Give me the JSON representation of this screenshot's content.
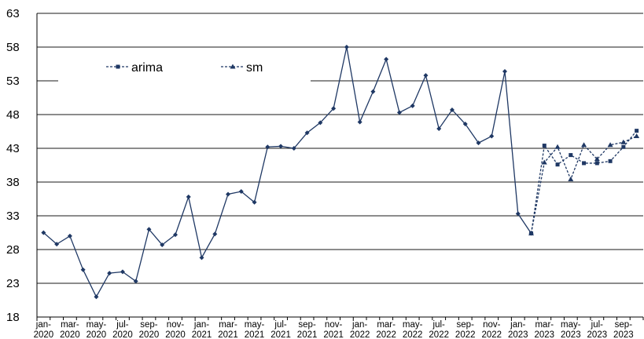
{
  "chart_data": {
    "type": "line",
    "title": "",
    "xlabel": "",
    "ylabel": "",
    "ylim": [
      18,
      63
    ],
    "y_ticks": [
      18,
      23,
      28,
      33,
      38,
      43,
      48,
      53,
      58,
      63
    ],
    "y_tick_labels": [
      "18",
      "23",
      "28",
      "33",
      "38",
      "43",
      "48",
      "53",
      "58",
      "63"
    ],
    "grid": "horizontal",
    "legend_position": "top-left",
    "x_tick_labels": [
      [
        "jan-",
        "2020"
      ],
      [
        "mar-",
        "2020"
      ],
      [
        "may-",
        "2020"
      ],
      [
        "jul-",
        "2020"
      ],
      [
        "sep-",
        "2020"
      ],
      [
        "nov-",
        "2020"
      ],
      [
        "jan-",
        "2021"
      ],
      [
        "mar-",
        "2021"
      ],
      [
        "may-",
        "2021"
      ],
      [
        "jul-",
        "2021"
      ],
      [
        "sep-",
        "2021"
      ],
      [
        "nov-",
        "2021"
      ],
      [
        "jan-",
        "2022"
      ],
      [
        "mar-",
        "2022"
      ],
      [
        "may-",
        "2022"
      ],
      [
        "jul-",
        "2022"
      ],
      [
        "sep-",
        "2022"
      ],
      [
        "nov-",
        "2022"
      ],
      [
        "jan-",
        "2023"
      ],
      [
        "mar-",
        "2023"
      ],
      [
        "may-",
        "2023"
      ],
      [
        "jul-",
        "2023"
      ],
      [
        "sep-",
        "2023"
      ]
    ],
    "x": [
      "2020-01",
      "2020-02",
      "2020-03",
      "2020-04",
      "2020-05",
      "2020-06",
      "2020-07",
      "2020-08",
      "2020-09",
      "2020-10",
      "2020-11",
      "2020-12",
      "2021-01",
      "2021-02",
      "2021-03",
      "2021-04",
      "2021-05",
      "2021-06",
      "2021-07",
      "2021-08",
      "2021-09",
      "2021-10",
      "2021-11",
      "2021-12",
      "2022-01",
      "2022-02",
      "2022-03",
      "2022-04",
      "2022-05",
      "2022-06",
      "2022-07",
      "2022-08",
      "2022-09",
      "2022-10",
      "2022-11",
      "2022-12",
      "2023-01",
      "2023-02",
      "2023-03",
      "2023-04",
      "2023-05",
      "2023-06",
      "2023-07",
      "2023-08",
      "2023-09",
      "2023-10"
    ],
    "series": [
      {
        "name": "",
        "style": "solid",
        "marker": "diamond",
        "color": "#1f3864",
        "values": [
          30.5,
          28.8,
          30.0,
          25.0,
          21.0,
          24.5,
          24.7,
          23.3,
          31.0,
          28.7,
          30.2,
          35.8,
          26.8,
          30.3,
          36.2,
          36.6,
          35.0,
          43.2,
          43.3,
          43.0,
          45.3,
          46.8,
          48.9,
          58.0,
          46.9,
          51.4,
          56.2,
          48.3,
          49.3,
          53.8,
          45.9,
          48.7,
          46.6,
          43.8,
          44.8,
          54.4,
          33.3,
          30.4,
          null,
          null,
          null,
          null,
          null,
          null,
          null,
          null
        ]
      },
      {
        "name": "arima",
        "style": "dashed",
        "marker": "square",
        "color": "#1f3864",
        "values": [
          null,
          null,
          null,
          null,
          null,
          null,
          null,
          null,
          null,
          null,
          null,
          null,
          null,
          null,
          null,
          null,
          null,
          null,
          null,
          null,
          null,
          null,
          null,
          null,
          null,
          null,
          null,
          null,
          null,
          null,
          null,
          null,
          null,
          null,
          null,
          null,
          null,
          30.4,
          43.4,
          40.6,
          42.0,
          40.8,
          40.8,
          41.1,
          43.2,
          45.6
        ]
      },
      {
        "name": "sm",
        "style": "dashed",
        "marker": "triangle",
        "color": "#1f3864",
        "values": [
          null,
          null,
          null,
          null,
          null,
          null,
          null,
          null,
          null,
          null,
          null,
          null,
          null,
          null,
          null,
          null,
          null,
          null,
          null,
          null,
          null,
          null,
          null,
          null,
          null,
          null,
          null,
          null,
          null,
          null,
          null,
          null,
          null,
          null,
          null,
          null,
          null,
          30.4,
          40.9,
          43.2,
          38.4,
          43.5,
          41.4,
          43.5,
          43.9,
          44.8
        ]
      }
    ]
  }
}
